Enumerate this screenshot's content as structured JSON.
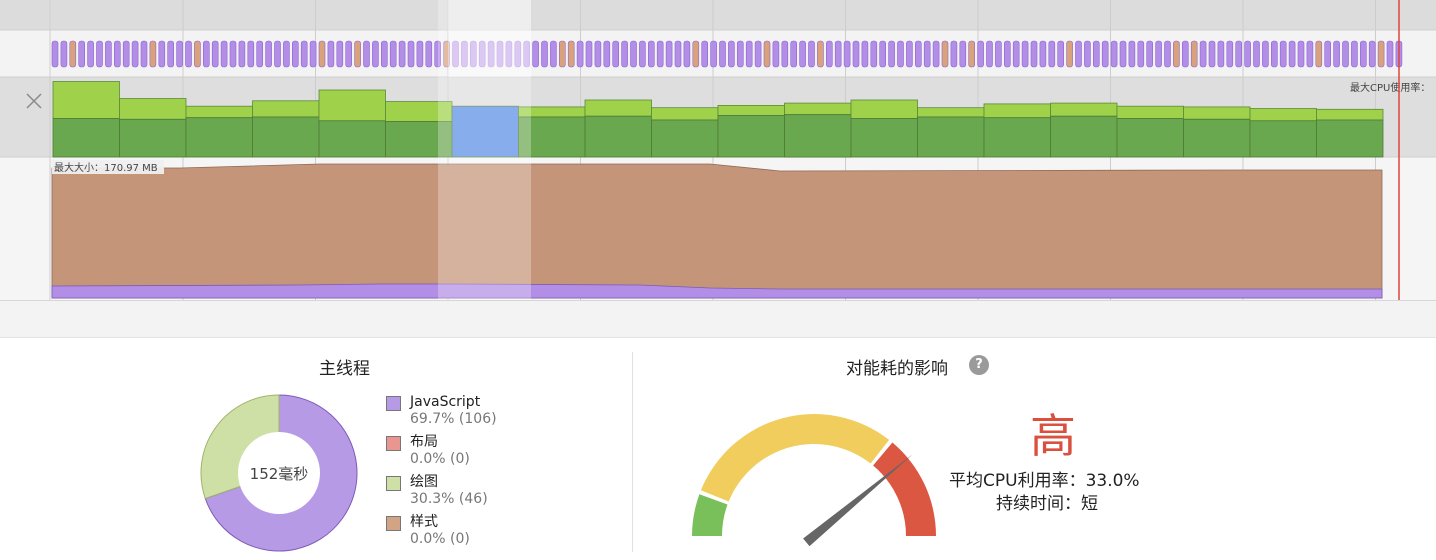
{
  "timeline": {
    "cpu_axis_label": "最大CPU使用率：",
    "memory_max_label": "最大大小：170.97 MB",
    "close_icon": "close-icon",
    "cpu_bars": {
      "colors": {
        "light": "#9fd24a",
        "dark": "#6aa84f",
        "selected": "#5b8ee6",
        "selected_light": "#8fb0ee"
      },
      "selected_index": 6,
      "totals": [
        0.98,
        0.76,
        0.66,
        0.73,
        0.87,
        0.72,
        0.66,
        0.65,
        0.74,
        0.64,
        0.67,
        0.7,
        0.74,
        0.64,
        0.69,
        0.7,
        0.66,
        0.65,
        0.63,
        0.62
      ],
      "base": [
        0.5,
        0.49,
        0.51,
        0.52,
        0.47,
        0.46,
        0.66,
        0.52,
        0.53,
        0.48,
        0.54,
        0.55,
        0.5,
        0.52,
        0.51,
        0.53,
        0.5,
        0.49,
        0.47,
        0.48
      ]
    },
    "memory": {
      "colors": {
        "memory": "#c49579",
        "js": "#b38ee6"
      }
    }
  },
  "main_thread": {
    "title": "主线程",
    "center_label": "152毫秒",
    "legend": [
      {
        "name": "JavaScript",
        "value": "69.7% (106)",
        "color": "#b79ae6",
        "percent": 69.7
      },
      {
        "name": "布局",
        "value": "0.0% (0)",
        "color": "#e99590",
        "percent": 0.0
      },
      {
        "name": "绘图",
        "value": "30.3% (46)",
        "color": "#cfe0a6",
        "percent": 30.3
      },
      {
        "name": "样式",
        "value": "0.0% (0)",
        "color": "#d3a386",
        "percent": 0.0
      }
    ]
  },
  "energy": {
    "title": "对能耗的影响",
    "help_icon": "help-icon",
    "help_glyph": "?",
    "level": "高",
    "level_fraction": 0.78,
    "avg_cpu_label": "平均CPU利用率：",
    "avg_cpu_value": "33.0%",
    "duration_label": "持续时间：",
    "duration_value": "短",
    "gauge_colors": {
      "low": "#7ac05a",
      "medium": "#f0cd5c",
      "high": "#db5742",
      "needle": "#666666"
    }
  }
}
